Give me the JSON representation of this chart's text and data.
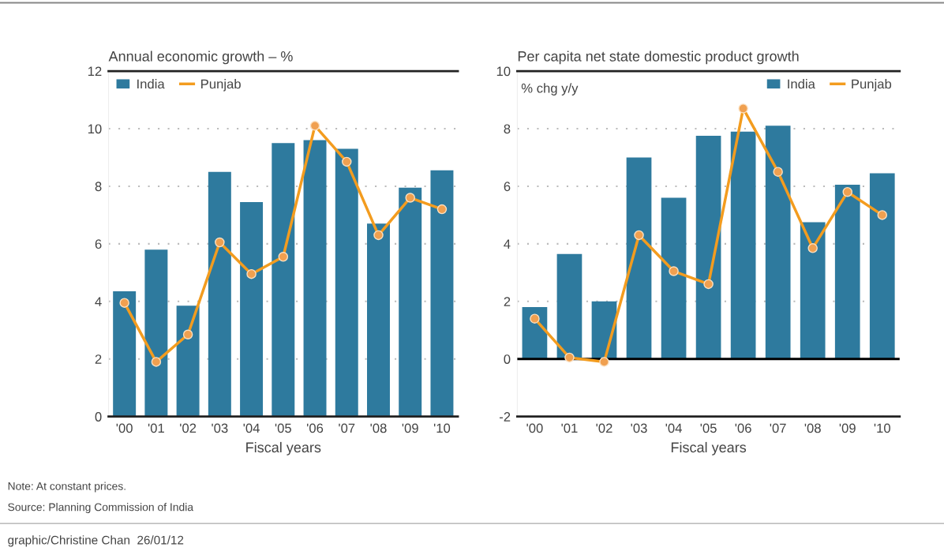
{
  "chart_data": [
    {
      "type": "bar",
      "title": "Annual economic growth – %",
      "xlabel": "Fiscal years",
      "categories": [
        "'00",
        "'01",
        "'02",
        "'03",
        "'04",
        "'05",
        "'06",
        "'07",
        "'08",
        "'09",
        "'10"
      ],
      "series": [
        {
          "name": "India",
          "color": "#2e7a9e",
          "values": [
            4.35,
            5.8,
            3.85,
            8.5,
            7.45,
            9.5,
            9.6,
            9.3,
            6.7,
            7.95,
            8.55
          ]
        },
        {
          "name": "Punjab",
          "type": "line",
          "color": "#f39c1f",
          "values": [
            3.95,
            1.9,
            2.85,
            6.05,
            4.95,
            5.55,
            10.1,
            8.85,
            6.3,
            7.6,
            7.2
          ]
        }
      ],
      "ylim": [
        0,
        12
      ],
      "yticks": [
        0,
        2,
        4,
        6,
        8,
        10,
        12
      ],
      "grid": "y",
      "legend": "top left",
      "marker": "circle",
      "annotations": [
        "Note: At constant prices.",
        "Source: Planning Commission of India",
        "graphic/Christine Chan  26/01/12"
      ]
    },
    {
      "type": "bar",
      "title": "Per capita net state domestic product growth",
      "ylabel": "% chg y/y",
      "xlabel": "Fiscal years",
      "categories": [
        "'00",
        "'01",
        "'02",
        "'03",
        "'04",
        "'05",
        "'06",
        "'07",
        "'08",
        "'09",
        "'10"
      ],
      "series": [
        {
          "name": "India",
          "color": "#2e7a9e",
          "values": [
            1.8,
            3.65,
            2.0,
            7.0,
            5.6,
            7.75,
            7.9,
            8.1,
            4.75,
            6.05,
            6.45
          ]
        },
        {
          "name": "Punjab",
          "type": "line",
          "color": "#f39c1f",
          "values": [
            1.4,
            0.05,
            -0.1,
            4.3,
            3.05,
            2.6,
            8.7,
            6.5,
            3.85,
            5.8,
            5.0
          ]
        }
      ],
      "ylim": [
        -2,
        10
      ],
      "yticks": [
        {
          "value": -2,
          "label": "-2"
        },
        0,
        2,
        4,
        6,
        8,
        10
      ],
      "grid": "y",
      "legend": "top right",
      "marker": "circle",
      "ref_lines": [
        {
          "axis": "y",
          "value": 0,
          "color": "#000000"
        }
      ]
    }
  ]
}
